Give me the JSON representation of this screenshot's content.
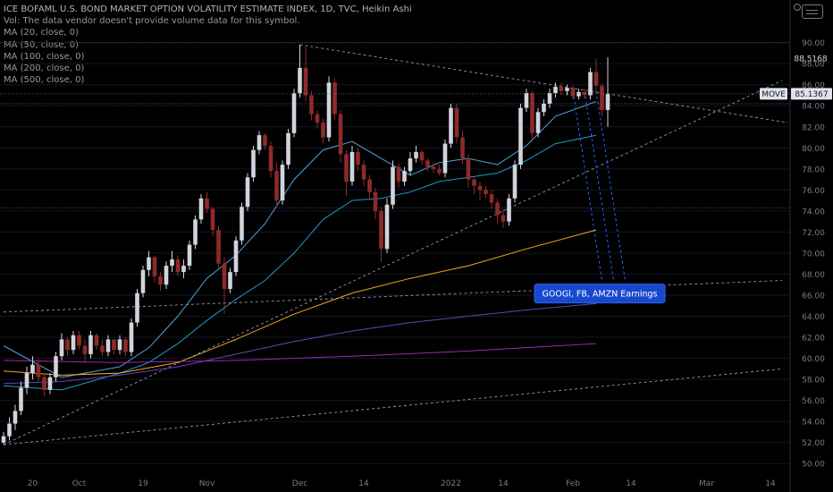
{
  "legend": {
    "title": "ICE BOFAML U.S. BOND MARKET OPTION VOLATILITY ESTIMATE INDEX, 1D, TVC, Heikin Ashi",
    "volume_note": "Vol: The data vendor doesn't provide volume data for this symbol.",
    "ma_lines": [
      "MA (20, close, 0)",
      "MA (50, close, 0)",
      "MA (100, close, 0)",
      "MA (200, close, 0)",
      "MA (500, close, 0)"
    ]
  },
  "chart_data": {
    "type": "candlestick",
    "symbol": "MOVE",
    "last_value": 85.1367,
    "high_marker": 88.5168,
    "ylim": [
      49,
      91.5
    ],
    "y_ticks": [
      50,
      52,
      54,
      56,
      58,
      60,
      62,
      64,
      66,
      68,
      70,
      72,
      74,
      76,
      78,
      80,
      82,
      84,
      86,
      88,
      90
    ],
    "x_ticks": [
      "20",
      "Oct",
      "19",
      "Nov",
      "Dec",
      "14",
      "2022",
      "14",
      "Feb",
      "14",
      "Mar",
      "14"
    ],
    "annotation": "GOOGl, FB, AMZN Earnings",
    "candles_ohlc": [
      [
        52.0,
        53.0,
        51.8,
        52.6
      ],
      [
        52.6,
        54.4,
        52.2,
        53.8
      ],
      [
        53.8,
        55.6,
        53.2,
        55.0
      ],
      [
        55.0,
        57.8,
        54.6,
        57.2
      ],
      [
        57.2,
        59.2,
        56.6,
        58.6
      ],
      [
        58.6,
        60.2,
        58.0,
        59.4
      ],
      [
        59.4,
        60.0,
        57.8,
        58.2
      ],
      [
        58.2,
        58.6,
        56.4,
        57.0
      ],
      [
        57.0,
        58.6,
        56.6,
        58.2
      ],
      [
        58.2,
        60.6,
        57.8,
        60.2
      ],
      [
        60.2,
        62.4,
        59.8,
        61.8
      ],
      [
        61.8,
        62.0,
        60.2,
        60.8
      ],
      [
        60.8,
        62.6,
        60.4,
        62.2
      ],
      [
        62.2,
        62.6,
        60.8,
        61.2
      ],
      [
        61.2,
        61.8,
        59.6,
        60.4
      ],
      [
        60.4,
        62.6,
        60.0,
        62.2
      ],
      [
        62.2,
        62.4,
        60.8,
        61.2
      ],
      [
        61.2,
        61.8,
        60.2,
        60.6
      ],
      [
        60.6,
        62.2,
        60.2,
        61.8
      ],
      [
        61.8,
        61.6,
        60.4,
        60.8
      ],
      [
        60.8,
        62.2,
        60.4,
        61.8
      ],
      [
        61.8,
        62.0,
        60.2,
        60.6
      ],
      [
        60.6,
        63.8,
        60.2,
        63.4
      ],
      [
        63.4,
        66.6,
        63.0,
        66.2
      ],
      [
        66.2,
        68.8,
        65.8,
        68.4
      ],
      [
        68.4,
        70.2,
        67.8,
        69.6
      ],
      [
        69.6,
        69.8,
        67.2,
        67.8
      ],
      [
        67.8,
        68.2,
        66.4,
        67.0
      ],
      [
        67.0,
        69.2,
        66.6,
        68.8
      ],
      [
        68.8,
        70.2,
        68.2,
        69.4
      ],
      [
        69.4,
        69.8,
        67.8,
        68.2
      ],
      [
        68.2,
        69.4,
        67.6,
        68.8
      ],
      [
        68.8,
        71.2,
        68.4,
        70.8
      ],
      [
        70.8,
        73.6,
        70.4,
        73.2
      ],
      [
        73.2,
        75.6,
        72.8,
        75.2
      ],
      [
        75.2,
        75.8,
        73.8,
        74.2
      ],
      [
        74.2,
        74.4,
        71.6,
        72.2
      ],
      [
        72.2,
        72.6,
        68.6,
        69.0
      ],
      [
        69.0,
        69.6,
        64.2,
        66.6
      ],
      [
        66.6,
        68.6,
        66.2,
        68.2
      ],
      [
        68.2,
        71.6,
        67.8,
        71.2
      ],
      [
        71.2,
        74.8,
        70.8,
        74.4
      ],
      [
        74.4,
        77.6,
        74.0,
        77.2
      ],
      [
        77.2,
        80.2,
        76.8,
        79.8
      ],
      [
        79.8,
        81.6,
        79.4,
        81.2
      ],
      [
        81.2,
        81.4,
        79.8,
        80.2
      ],
      [
        80.2,
        80.6,
        77.2,
        77.8
      ],
      [
        77.8,
        78.6,
        74.4,
        75.0
      ],
      [
        75.0,
        78.8,
        74.6,
        78.4
      ],
      [
        78.4,
        81.8,
        78.0,
        81.4
      ],
      [
        81.4,
        85.6,
        81.0,
        85.2
      ],
      [
        85.2,
        89.8,
        84.8,
        87.6
      ],
      [
        87.6,
        89.6,
        84.4,
        85.0
      ],
      [
        85.0,
        85.4,
        82.6,
        83.2
      ],
      [
        83.2,
        83.6,
        81.8,
        82.4
      ],
      [
        82.4,
        82.8,
        80.4,
        81.0
      ],
      [
        81.0,
        86.8,
        80.6,
        86.2
      ],
      [
        86.2,
        86.6,
        82.6,
        83.2
      ],
      [
        83.2,
        83.6,
        78.6,
        79.4
      ],
      [
        79.4,
        79.8,
        75.4,
        76.8
      ],
      [
        76.8,
        80.2,
        76.4,
        79.6
      ],
      [
        79.6,
        80.0,
        77.8,
        78.4
      ],
      [
        78.4,
        78.8,
        76.4,
        77.0
      ],
      [
        77.0,
        77.4,
        75.0,
        75.8
      ],
      [
        75.8,
        76.2,
        73.2,
        74.0
      ],
      [
        74.0,
        74.4,
        69.2,
        70.4
      ],
      [
        70.4,
        75.2,
        70.0,
        74.6
      ],
      [
        74.6,
        78.8,
        74.2,
        78.2
      ],
      [
        78.2,
        78.6,
        76.2,
        76.8
      ],
      [
        76.8,
        78.2,
        76.4,
        77.8
      ],
      [
        77.8,
        79.6,
        77.4,
        79.0
      ],
      [
        79.0,
        80.2,
        78.6,
        79.6
      ],
      [
        79.6,
        79.8,
        78.4,
        78.8
      ],
      [
        78.8,
        79.0,
        77.8,
        78.2
      ],
      [
        78.2,
        78.6,
        77.6,
        78.0
      ],
      [
        78.0,
        78.4,
        77.4,
        77.6
      ],
      [
        77.6,
        80.8,
        77.2,
        80.4
      ],
      [
        80.4,
        84.2,
        80.0,
        83.8
      ],
      [
        83.8,
        84.2,
        80.4,
        81.0
      ],
      [
        81.0,
        81.6,
        78.4,
        79.0
      ],
      [
        79.0,
        79.4,
        76.2,
        77.0
      ],
      [
        77.0,
        77.2,
        75.6,
        76.4
      ],
      [
        76.4,
        76.8,
        75.0,
        76.0
      ],
      [
        76.0,
        76.4,
        75.2,
        75.6
      ],
      [
        75.6,
        76.0,
        74.2,
        74.8
      ],
      [
        74.8,
        75.2,
        72.8,
        73.6
      ],
      [
        73.6,
        74.2,
        72.4,
        73.0
      ],
      [
        73.0,
        75.6,
        72.6,
        75.2
      ],
      [
        75.2,
        78.8,
        74.8,
        78.4
      ],
      [
        78.4,
        84.2,
        78.0,
        83.8
      ],
      [
        83.8,
        85.6,
        83.4,
        85.2
      ],
      [
        85.2,
        85.4,
        80.6,
        81.4
      ],
      [
        81.4,
        83.8,
        81.0,
        83.4
      ],
      [
        83.4,
        84.6,
        83.0,
        84.2
      ],
      [
        84.2,
        85.6,
        83.8,
        85.2
      ],
      [
        85.2,
        86.2,
        84.8,
        85.8
      ],
      [
        85.8,
        86.2,
        85.0,
        85.4
      ],
      [
        85.4,
        86.0,
        85.0,
        85.7
      ],
      [
        85.7,
        85.9,
        84.6,
        84.9
      ],
      [
        84.9,
        85.6,
        84.6,
        85.3
      ],
      [
        85.3,
        85.6,
        84.7,
        85.0
      ],
      [
        85.0,
        87.6,
        84.6,
        87.2
      ],
      [
        87.2,
        88.5,
        85.4,
        85.9
      ],
      [
        85.9,
        86.1,
        83.0,
        83.6
      ],
      [
        83.6,
        88.6,
        82.0,
        85.1
      ]
    ],
    "moving_averages": [
      {
        "color": "#4fa3e0",
        "values": [
          [
            0,
            61.2
          ],
          [
            10,
            58.2
          ],
          [
            20,
            59.2
          ],
          [
            25,
            61.0
          ],
          [
            30,
            64.0
          ],
          [
            35,
            67.6
          ],
          [
            40,
            69.8
          ],
          [
            45,
            72.8
          ],
          [
            50,
            77.0
          ],
          [
            55,
            79.8
          ],
          [
            60,
            80.6
          ],
          [
            65,
            79.0
          ],
          [
            70,
            77.4
          ],
          [
            75,
            78.6
          ],
          [
            80,
            79.0
          ],
          [
            85,
            78.4
          ],
          [
            90,
            80.2
          ],
          [
            95,
            83.0
          ],
          [
            102,
            84.4
          ]
        ]
      },
      {
        "color": "#1e9bcf",
        "values": [
          [
            0,
            57.4
          ],
          [
            10,
            57.0
          ],
          [
            20,
            58.6
          ],
          [
            25,
            59.6
          ],
          [
            30,
            61.4
          ],
          [
            35,
            63.6
          ],
          [
            40,
            65.6
          ],
          [
            45,
            67.4
          ],
          [
            50,
            70.0
          ],
          [
            55,
            73.2
          ],
          [
            60,
            75.0
          ],
          [
            65,
            75.2
          ],
          [
            70,
            75.8
          ],
          [
            75,
            76.8
          ],
          [
            80,
            77.2
          ],
          [
            85,
            77.6
          ],
          [
            90,
            78.8
          ],
          [
            95,
            80.4
          ],
          [
            102,
            81.2
          ]
        ]
      },
      {
        "color": "#f5a623",
        "values": [
          [
            0,
            58.8
          ],
          [
            10,
            58.4
          ],
          [
            20,
            58.6
          ],
          [
            30,
            59.6
          ],
          [
            40,
            61.8
          ],
          [
            50,
            64.2
          ],
          [
            60,
            66.2
          ],
          [
            70,
            67.6
          ],
          [
            80,
            68.8
          ],
          [
            90,
            70.4
          ],
          [
            102,
            72.2
          ]
        ]
      },
      {
        "color": "#6a3fb8",
        "values": [
          [
            0,
            57.6
          ],
          [
            10,
            57.8
          ],
          [
            20,
            58.4
          ],
          [
            30,
            59.2
          ],
          [
            40,
            60.4
          ],
          [
            50,
            61.6
          ],
          [
            60,
            62.6
          ],
          [
            70,
            63.4
          ],
          [
            80,
            64.0
          ],
          [
            90,
            64.6
          ],
          [
            102,
            65.2
          ]
        ]
      },
      {
        "color": "#9c27b0",
        "values": [
          [
            0,
            59.8
          ],
          [
            20,
            59.6
          ],
          [
            40,
            59.8
          ],
          [
            60,
            60.2
          ],
          [
            80,
            60.7
          ],
          [
            102,
            61.4
          ]
        ]
      }
    ]
  }
}
